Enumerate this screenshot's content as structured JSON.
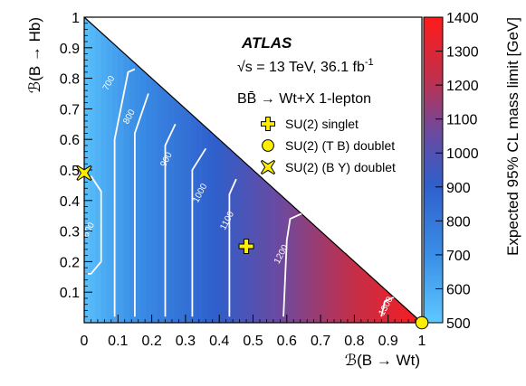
{
  "chart_data": {
    "type": "heatmap",
    "title": "",
    "experiment": "ATLAS",
    "energy_label": "√s = 13 TeV, 36.1 fb⁻¹",
    "sqrt_s_label": "√s = 13 TeV, 36.1 fb",
    "lumi_exponent": "-1",
    "channel_label": "BB̄ → Wt+X 1-lepton",
    "xlabel": "ℬ(B → Wt)",
    "ylabel": "ℬ(B → Hb)",
    "zlabel": "Expected 95% CL mass limit [GeV]",
    "xlim": [
      0,
      1
    ],
    "ylim": [
      0,
      1
    ],
    "zlim": [
      500,
      1400
    ],
    "x_ticks": [
      "0",
      "0.1",
      "0.2",
      "0.3",
      "0.4",
      "0.5",
      "0.6",
      "0.7",
      "0.8",
      "0.9",
      "1"
    ],
    "y_ticks": [
      "0.1",
      "0.2",
      "0.3",
      "0.4",
      "0.5",
      "0.6",
      "0.7",
      "0.8",
      "0.9",
      "1"
    ],
    "z_ticks": [
      "500",
      "600",
      "700",
      "800",
      "900",
      "1000",
      "1100",
      "1200",
      "1300",
      "1400"
    ],
    "color_scale": [
      "#5ec8ff",
      "#2f72d8",
      "#6a4aa0",
      "#c0304c",
      "#ff1a1a"
    ],
    "contours": [
      {
        "level": "600",
        "label": "600",
        "label_x": 0.02,
        "label_y": 0.3
      },
      {
        "level": "700",
        "label": "700",
        "label_x": 0.08,
        "label_y": 0.78
      },
      {
        "level": "800",
        "label": "800",
        "label_x": 0.14,
        "label_y": 0.67
      },
      {
        "level": "900",
        "label": "900",
        "label_x": 0.25,
        "label_y": 0.53
      },
      {
        "level": "1000",
        "label": "1000",
        "label_x": 0.35,
        "label_y": 0.42
      },
      {
        "level": "1100",
        "label": "1100",
        "label_x": 0.43,
        "label_y": 0.33
      },
      {
        "level": "1200",
        "label": "1200",
        "label_x": 0.59,
        "label_y": 0.22
      },
      {
        "level": "1300",
        "label": "1300",
        "label_x": 0.9,
        "label_y": 0.05
      }
    ],
    "markers": [
      {
        "name": "SU(2) singlet",
        "symbol": "plus",
        "color": "#ffee00",
        "x": 0.48,
        "y": 0.25
      },
      {
        "name": "SU(2) (T B) doublet",
        "symbol": "circle",
        "color": "#ffee00",
        "x": 1.0,
        "y": 0.0
      },
      {
        "name": "SU(2) (B Y) doublet",
        "symbol": "cross",
        "color": "#ffee00",
        "x": 0.0,
        "y": 0.49
      }
    ],
    "legend_position": "top-right",
    "grid": false
  }
}
